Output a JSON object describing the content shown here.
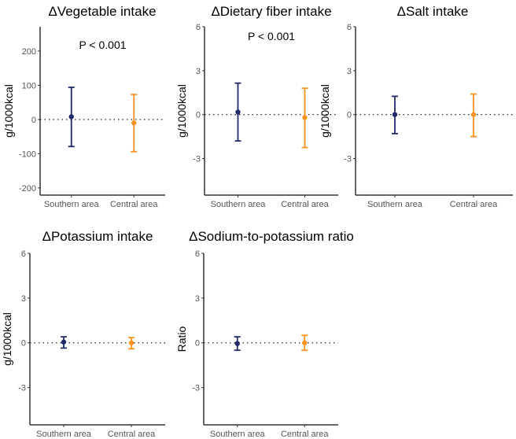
{
  "chart_data": [
    {
      "type": "scatter",
      "title": "ΔVegetable intake",
      "ylabel": "g/1000kcal",
      "annotation": "P < 0.001",
      "categories": [
        "Southern area",
        "Central area"
      ],
      "yticks": [
        -200,
        -100,
        0,
        100,
        200
      ],
      "ylim": [
        -221,
        271
      ],
      "points": [
        {
          "name": "Southern area",
          "mean": 8,
          "lower": -79,
          "upper": 94
        },
        {
          "name": "Central area",
          "mean": -10,
          "lower": -94,
          "upper": 73
        }
      ]
    },
    {
      "type": "scatter",
      "title": "ΔDietary fiber intake",
      "ylabel": "g/1000kcal",
      "annotation": "P < 0.001",
      "categories": [
        "Southern area",
        "Central area"
      ],
      "yticks": [
        -3,
        0,
        3,
        6
      ],
      "ylim": [
        -5.5,
        6
      ],
      "points": [
        {
          "name": "Southern area",
          "mean": 0.17,
          "lower": -1.8,
          "upper": 2.15
        },
        {
          "name": "Central area",
          "mean": -0.2,
          "lower": -2.25,
          "upper": 1.8
        }
      ]
    },
    {
      "type": "scatter",
      "title": "ΔSalt intake",
      "ylabel": "g/1000kcal",
      "annotation": "",
      "categories": [
        "Southern area",
        "Central area"
      ],
      "yticks": [
        -3,
        0,
        3,
        6
      ],
      "ylim": [
        -5.5,
        6
      ],
      "points": [
        {
          "name": "Southern area",
          "mean": 0,
          "lower": -1.3,
          "upper": 1.25
        },
        {
          "name": "Central area",
          "mean": 0,
          "lower": -1.5,
          "upper": 1.4
        }
      ]
    },
    {
      "type": "scatter",
      "title": "ΔPotassium intake",
      "ylabel": "g/1000kcal",
      "annotation": "",
      "categories": [
        "Southern area",
        "Central area"
      ],
      "yticks": [
        -3,
        0,
        3,
        6
      ],
      "ylim": [
        -5.5,
        6
      ],
      "points": [
        {
          "name": "Southern area",
          "mean": 0.05,
          "lower": -0.35,
          "upper": 0.4
        },
        {
          "name": "Central area",
          "mean": 0,
          "lower": -0.4,
          "upper": 0.35
        }
      ]
    },
    {
      "type": "scatter",
      "title": "ΔSodium-to-potassium ratio",
      "ylabel": "Ratio",
      "annotation": "",
      "categories": [
        "Southern area",
        "Central area"
      ],
      "yticks": [
        -3,
        0,
        3,
        6
      ],
      "ylim": [
        -5.5,
        6
      ],
      "points": [
        {
          "name": "Southern area",
          "mean": -0.05,
          "lower": -0.5,
          "upper": 0.4
        },
        {
          "name": "Central area",
          "mean": 0,
          "lower": -0.5,
          "upper": 0.5
        }
      ]
    }
  ],
  "colors": {
    "Southern area": "#1f2a6b",
    "Central area": "#f7931e"
  }
}
